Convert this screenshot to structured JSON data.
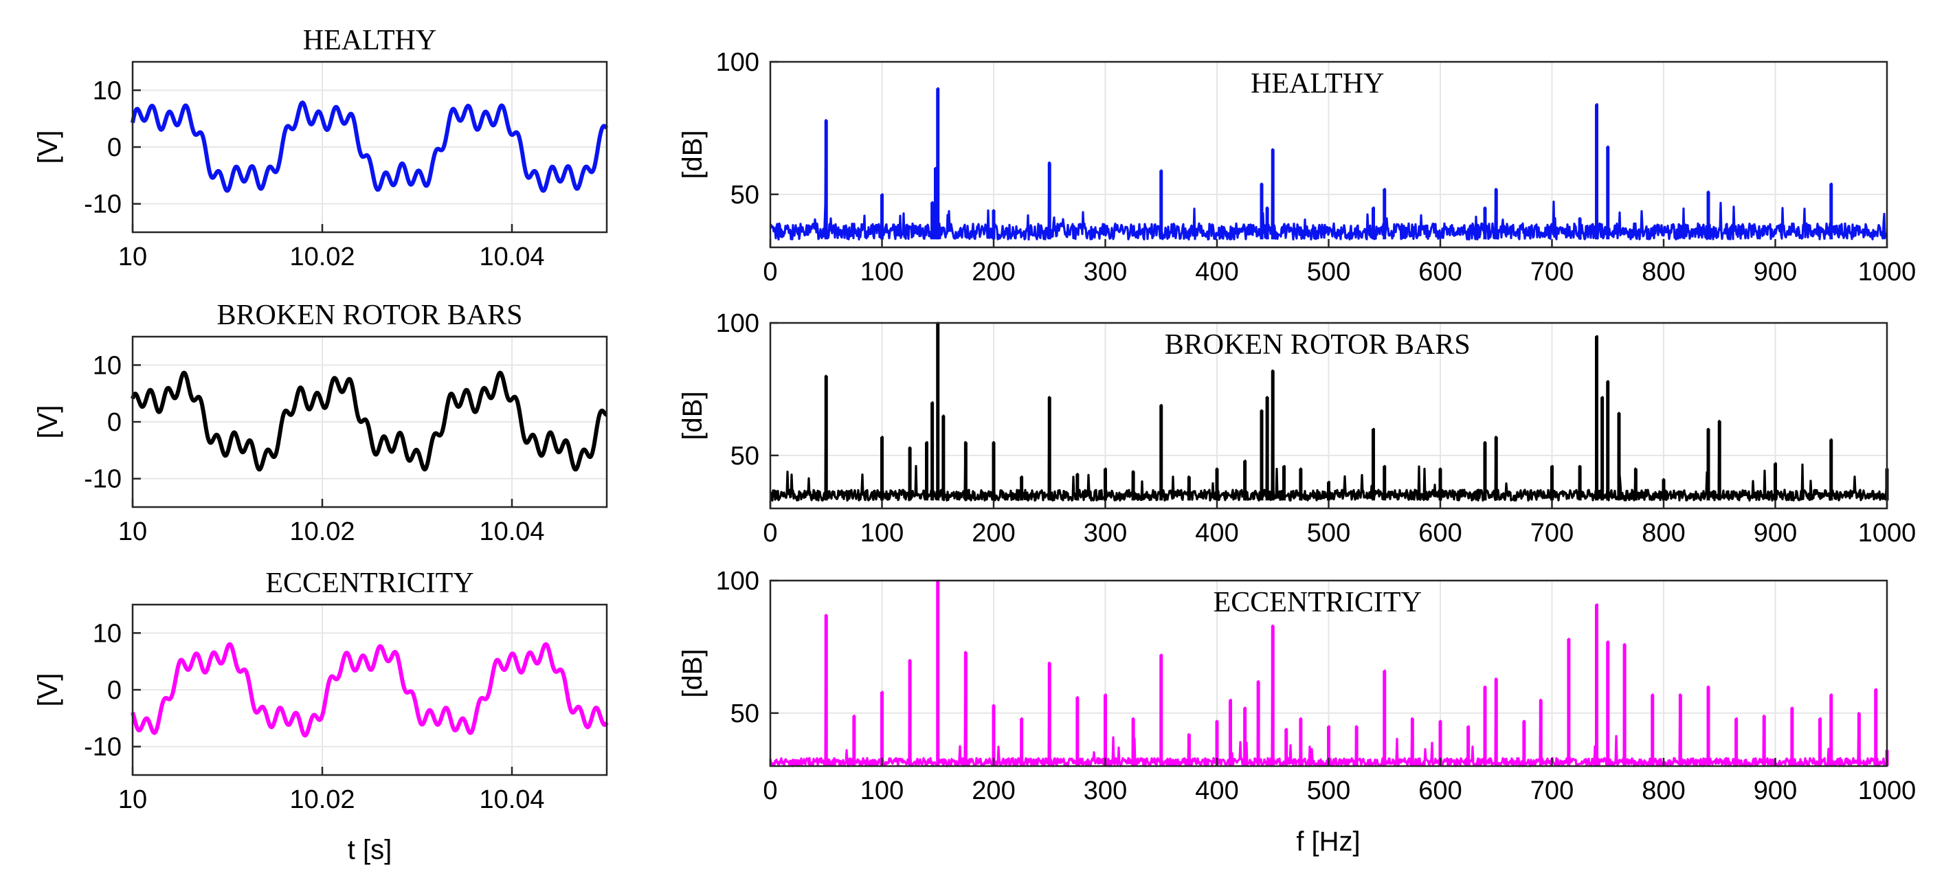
{
  "figure": {
    "time_xlabel": "t [s]",
    "freq_xlabel": "f [Hz]",
    "time_ylabel": "[V]",
    "freq_ylabel": "[dB]"
  },
  "chart_data": [
    {
      "id": "healthy-time",
      "type": "line",
      "title": "HEALTHY",
      "xlabel": "",
      "ylabel": "[V]",
      "xlim": [
        10,
        10.05
      ],
      "ylim": [
        -15,
        15
      ],
      "xticks": [
        10,
        10.02,
        10.04
      ],
      "xtick_labels": [
        "10",
        "10.02",
        "10.04"
      ],
      "yticks": [
        -10,
        0,
        10
      ],
      "ytick_labels": [
        "-10",
        "0",
        "10"
      ],
      "color": "#0a14f0",
      "signal": {
        "base_amp": 6.5,
        "phase": 0.35,
        "h3_amp": 2.0,
        "h3_phase": 0.9,
        "h9_amp": 1.6,
        "h9_phase": 0.3,
        "offset": 0
      },
      "samples": 600
    },
    {
      "id": "broken-time",
      "type": "line",
      "title": "BROKEN ROTOR BARS",
      "xlabel": "",
      "ylabel": "[V]",
      "xlim": [
        10,
        10.05
      ],
      "ylim": [
        -15,
        15
      ],
      "xticks": [
        10,
        10.02,
        10.04
      ],
      "xtick_labels": [
        "10",
        "10.02",
        "10.04"
      ],
      "yticks": [
        -10,
        0,
        10
      ],
      "ytick_labels": [
        "-10",
        "0",
        "10"
      ],
      "color": "#000000",
      "signal": {
        "base_amp": 6.0,
        "phase": 0.1,
        "h3_amp": 2.2,
        "h3_phase": 1.2,
        "h9_amp": 1.7,
        "h9_phase": 1.0,
        "offset": 0
      },
      "samples": 600
    },
    {
      "id": "eccentricity-time",
      "type": "line",
      "title": "ECCENTRICITY",
      "xlabel": "t [s]",
      "ylabel": "[V]",
      "xlim": [
        10,
        10.05
      ],
      "ylim": [
        -15,
        15
      ],
      "xticks": [
        10,
        10.02,
        10.04
      ],
      "xtick_labels": [
        "10",
        "10.02",
        "10.04"
      ],
      "yticks": [
        -10,
        0,
        10
      ],
      "ytick_labels": [
        "-10",
        "0",
        "10"
      ],
      "color": "#ff00ff",
      "signal": {
        "base_amp": 6.5,
        "phase": -1.6,
        "h3_amp": 1.8,
        "h3_phase": 2.0,
        "h9_amp": 1.5,
        "h9_phase": 2.5,
        "offset": 0
      },
      "samples": 600
    },
    {
      "id": "healthy-spectrum",
      "type": "line",
      "title": "HEALTHY",
      "xlabel": "",
      "ylabel": "[dB]",
      "xlim": [
        0,
        1000
      ],
      "ylim": [
        30,
        100
      ],
      "xticks": [
        0,
        100,
        200,
        300,
        400,
        500,
        600,
        700,
        800,
        900,
        1000
      ],
      "xtick_labels": [
        "0",
        "100",
        "200",
        "300",
        "400",
        "500",
        "600",
        "700",
        "800",
        "900",
        "1000"
      ],
      "yticks": [
        50,
        100
      ],
      "ytick_labels": [
        "50",
        "100"
      ],
      "color": "#0a14f0",
      "noise_floor": [
        33,
        39
      ],
      "peaks": [
        [
          50,
          78
        ],
        [
          100,
          50
        ],
        [
          145,
          47
        ],
        [
          148,
          60
        ],
        [
          150,
          90
        ],
        [
          200,
          44
        ],
        [
          250,
          62
        ],
        [
          350,
          59
        ],
        [
          440,
          54
        ],
        [
          445,
          45
        ],
        [
          450,
          67
        ],
        [
          540,
          45
        ],
        [
          550,
          52
        ],
        [
          640,
          45
        ],
        [
          650,
          52
        ],
        [
          725,
          41
        ],
        [
          740,
          84
        ],
        [
          750,
          68
        ],
        [
          840,
          51
        ],
        [
          950,
          54
        ]
      ]
    },
    {
      "id": "broken-spectrum",
      "type": "line",
      "title": "BROKEN ROTOR BARS",
      "xlabel": "",
      "ylabel": "[dB]",
      "xlim": [
        0,
        1000
      ],
      "ylim": [
        30,
        100
      ],
      "xticks": [
        0,
        100,
        200,
        300,
        400,
        500,
        600,
        700,
        800,
        900,
        1000
      ],
      "xtick_labels": [
        "0",
        "100",
        "200",
        "300",
        "400",
        "500",
        "600",
        "700",
        "800",
        "900",
        "1000"
      ],
      "yticks": [
        50,
        100
      ],
      "ytick_labels": [
        "50",
        "100"
      ],
      "color": "#000000",
      "noise_floor": [
        33,
        37
      ],
      "peaks": [
        [
          50,
          80
        ],
        [
          100,
          57
        ],
        [
          125,
          53
        ],
        [
          140,
          55
        ],
        [
          145,
          70
        ],
        [
          150,
          100
        ],
        [
          155,
          65
        ],
        [
          175,
          55
        ],
        [
          200,
          55
        ],
        [
          225,
          42
        ],
        [
          250,
          72
        ],
        [
          275,
          43
        ],
        [
          300,
          45
        ],
        [
          325,
          44
        ],
        [
          350,
          69
        ],
        [
          375,
          42
        ],
        [
          400,
          45
        ],
        [
          425,
          48
        ],
        [
          440,
          67
        ],
        [
          445,
          72
        ],
        [
          450,
          82
        ],
        [
          460,
          46
        ],
        [
          475,
          45
        ],
        [
          500,
          40
        ],
        [
          540,
          60
        ],
        [
          550,
          46
        ],
        [
          600,
          45
        ],
        [
          640,
          55
        ],
        [
          650,
          57
        ],
        [
          700,
          46
        ],
        [
          725,
          46
        ],
        [
          740,
          95
        ],
        [
          745,
          72
        ],
        [
          750,
          78
        ],
        [
          760,
          66
        ],
        [
          775,
          45
        ],
        [
          800,
          41
        ],
        [
          840,
          60
        ],
        [
          850,
          63
        ],
        [
          900,
          47
        ],
        [
          950,
          56
        ],
        [
          1000,
          45
        ]
      ]
    },
    {
      "id": "eccentricity-spectrum",
      "type": "line",
      "title": "ECCENTRICITY",
      "xlabel": "f [Hz]",
      "ylabel": "[dB]",
      "xlim": [
        0,
        1000
      ],
      "ylim": [
        30,
        100
      ],
      "xticks": [
        0,
        100,
        200,
        300,
        400,
        500,
        600,
        700,
        800,
        900,
        1000
      ],
      "xtick_labels": [
        "0",
        "100",
        "200",
        "300",
        "400",
        "500",
        "600",
        "700",
        "800",
        "900",
        "1000"
      ],
      "yticks": [
        50,
        100
      ],
      "ytick_labels": [
        "50",
        "100"
      ],
      "color": "#ff00ff",
      "noise_floor": [
        30,
        33
      ],
      "peaks": [
        [
          25,
          32
        ],
        [
          50,
          87
        ],
        [
          75,
          49
        ],
        [
          100,
          58
        ],
        [
          125,
          70
        ],
        [
          150,
          100
        ],
        [
          175,
          73
        ],
        [
          200,
          53
        ],
        [
          225,
          48
        ],
        [
          250,
          69
        ],
        [
          275,
          56
        ],
        [
          300,
          57
        ],
        [
          325,
          48
        ],
        [
          350,
          72
        ],
        [
          375,
          42
        ],
        [
          400,
          47
        ],
        [
          412,
          55
        ],
        [
          425,
          52
        ],
        [
          437,
          62
        ],
        [
          450,
          83
        ],
        [
          462,
          44
        ],
        [
          475,
          48
        ],
        [
          500,
          45
        ],
        [
          525,
          45
        ],
        [
          550,
          66
        ],
        [
          575,
          48
        ],
        [
          600,
          47
        ],
        [
          625,
          45
        ],
        [
          640,
          60
        ],
        [
          650,
          63
        ],
        [
          675,
          47
        ],
        [
          690,
          55
        ],
        [
          715,
          78
        ],
        [
          740,
          91
        ],
        [
          750,
          77
        ],
        [
          765,
          76
        ],
        [
          790,
          57
        ],
        [
          815,
          57
        ],
        [
          840,
          60
        ],
        [
          865,
          48
        ],
        [
          890,
          49
        ],
        [
          915,
          52
        ],
        [
          940,
          48
        ],
        [
          950,
          57
        ],
        [
          975,
          50
        ],
        [
          990,
          59
        ],
        [
          1000,
          36
        ]
      ]
    }
  ]
}
